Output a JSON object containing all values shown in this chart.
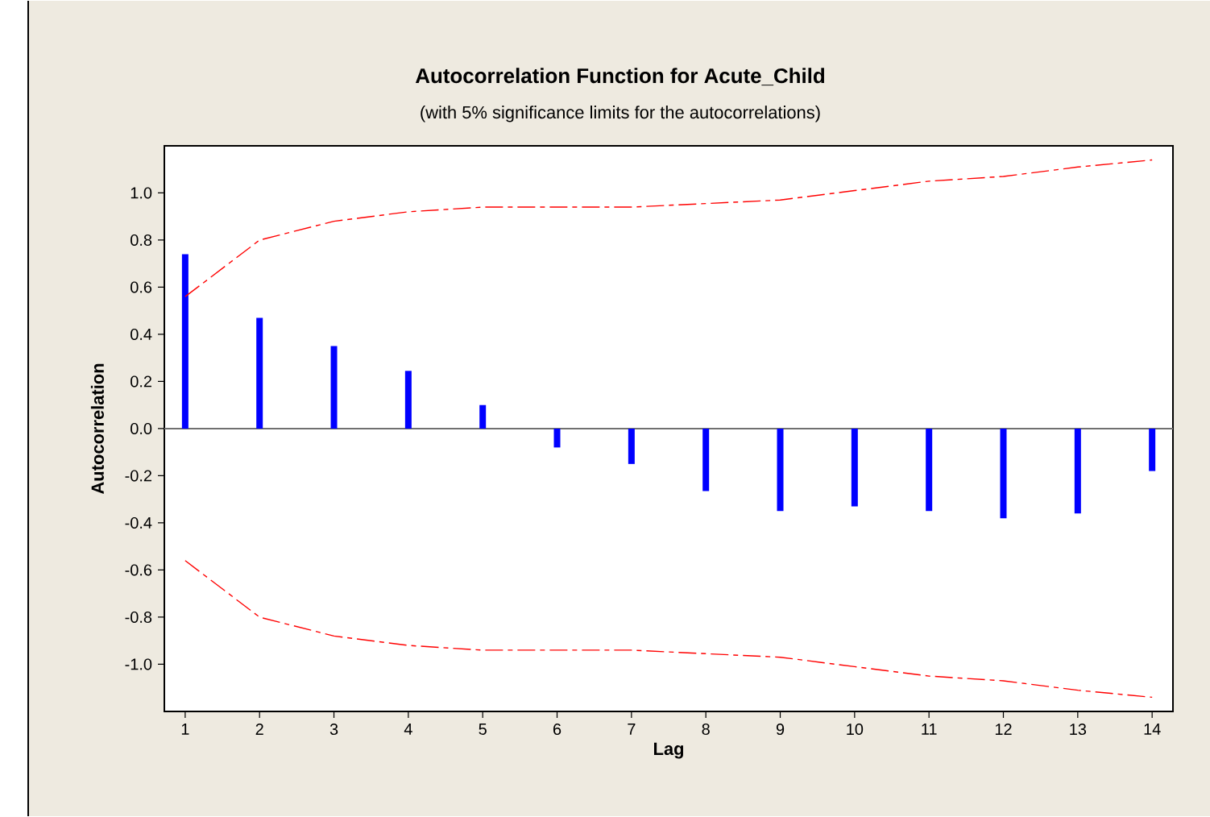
{
  "chart_data": {
    "type": "bar",
    "title": "Autocorrelation Function for Acute_Child",
    "subtitle": "(with 5% significance limits for the autocorrelations)",
    "xlabel": "Lag",
    "ylabel": "Autocorrelation",
    "categories": [
      "1",
      "2",
      "3",
      "4",
      "5",
      "6",
      "7",
      "8",
      "9",
      "10",
      "11",
      "12",
      "13",
      "14"
    ],
    "series": [
      {
        "color": "#0000ff",
        "values": [
          0.74,
          0.47,
          0.35,
          0.245,
          0.1,
          -0.08,
          -0.15,
          -0.265,
          -0.35,
          -0.33,
          -0.35,
          -0.38,
          -0.36,
          -0.18
        ]
      },
      {
        "type": "line",
        "color": "#ff0000",
        "line_style": "dashed",
        "values": [
          0.56,
          0.8,
          0.88,
          0.92,
          0.94,
          0.94,
          0.94,
          0.955,
          0.97,
          1.01,
          1.05,
          1.07,
          1.11,
          1.14
        ]
      },
      {
        "type": "line",
        "color": "#ff0000",
        "line_style": "dashed",
        "values": [
          -0.56,
          -0.8,
          -0.88,
          -0.92,
          -0.94,
          -0.94,
          -0.94,
          -0.955,
          -0.97,
          -1.01,
          -1.05,
          -1.07,
          -1.11,
          -1.14
        ]
      }
    ],
    "ylim": [
      -1.2,
      1.2
    ],
    "yticks": [
      {
        "value": -1.0,
        "label": "-1.0"
      },
      {
        "value": -0.8,
        "label": "-0.8"
      },
      {
        "value": -0.6,
        "label": "-0.6"
      },
      {
        "value": -0.4,
        "label": "-0.4"
      },
      {
        "value": -0.2,
        "label": "-0.2"
      },
      {
        "value": 0.0,
        "label": "0.0"
      },
      {
        "value": 0.2,
        "label": "0.2"
      },
      {
        "value": 0.4,
        "label": "0.4"
      },
      {
        "value": 0.6,
        "label": "0.6"
      },
      {
        "value": 0.8,
        "label": "0.8"
      },
      {
        "value": 1.0,
        "label": "1.0"
      }
    ],
    "ref_lines": [
      {
        "axis": "y",
        "value": 0,
        "color": "#707070"
      }
    ]
  }
}
